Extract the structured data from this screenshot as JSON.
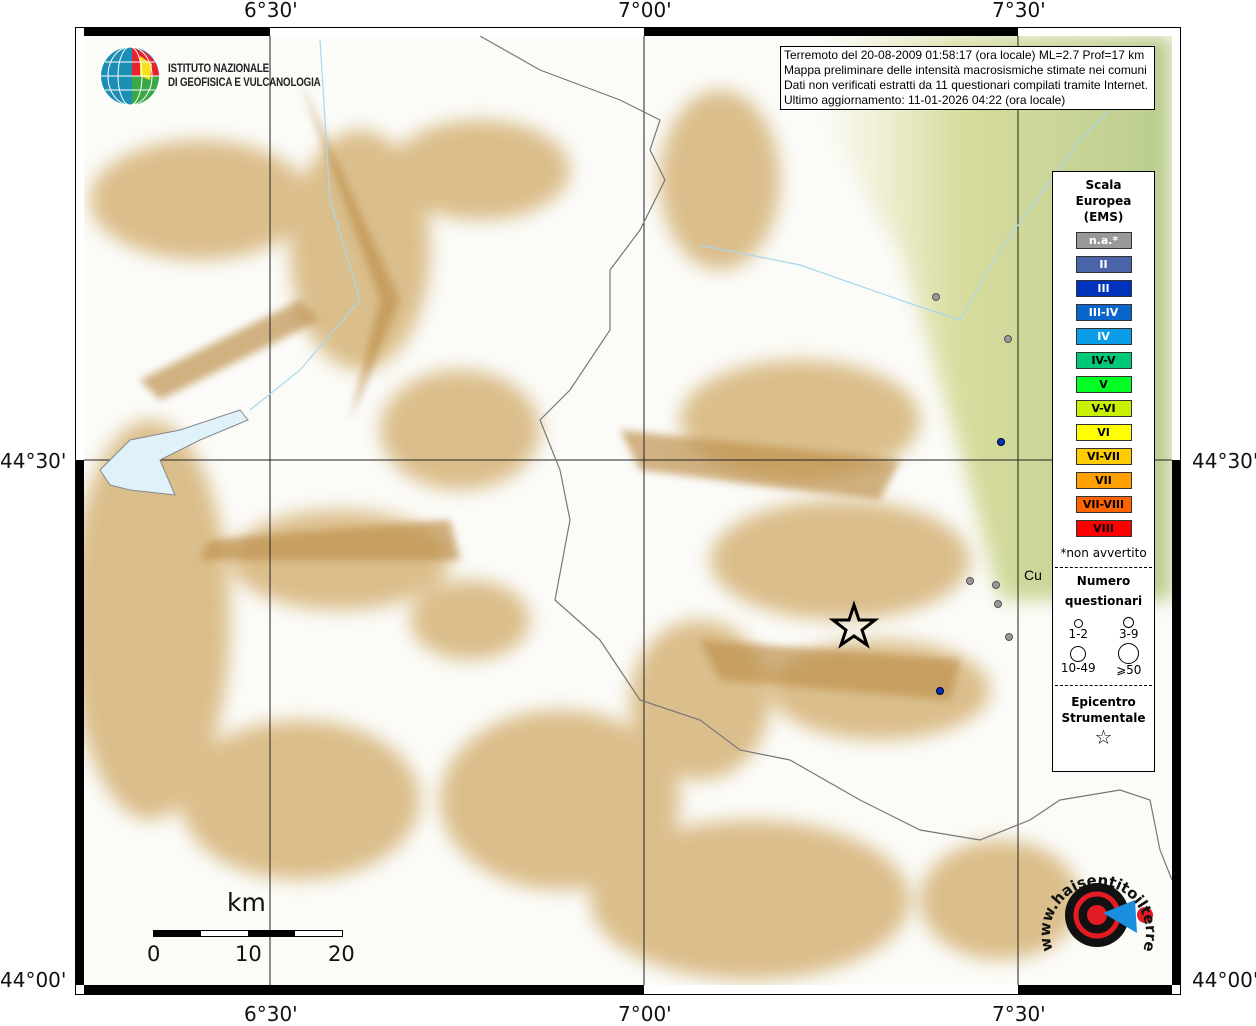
{
  "map": {
    "lon_labels": [
      "6°30'",
      "7°00'",
      "7°30'"
    ],
    "lat_labels": [
      "44°30'",
      "44°00'"
    ],
    "town_label": "Cu",
    "colors": {
      "relief_low": "#ece3b0",
      "relief_mid": "#c8a060",
      "plain": "#c8d39a",
      "border": "#777777",
      "water": "#dff2fa",
      "intensity_na": "#999999",
      "intensity_iii": "#0033bb"
    },
    "epicenter": {
      "icon": "star-icon"
    },
    "points": [
      {
        "intensity": "n.a.*"
      },
      {
        "intensity": "n.a.*"
      },
      {
        "intensity": "n.a.*"
      },
      {
        "intensity": "n.a.*"
      },
      {
        "intensity": "n.a.*"
      },
      {
        "intensity": "n.a.*"
      },
      {
        "intensity": "III"
      },
      {
        "intensity": "III"
      }
    ]
  },
  "info": {
    "line1": "Terremoto del 20-08-2009 01:58:17 (ora locale) ML=2.7 Prof=17 km",
    "line2": "Mappa preliminare delle intensità macrosismiche stimate nei comuni",
    "line3": "Dati non verificati estratti da 11 questionari compilati tramite Internet.",
    "line4": "Ultimo aggiornamento: 11-01-2026 04:22 (ora locale)"
  },
  "logo": {
    "ingv_line1": "ISTITUTO NAZIONALE",
    "ingv_line2": "DI GEOFISICA E VULCANOLOGIA",
    "hsit_text": "www.haisentitoilterremoto.it"
  },
  "legend": {
    "title": [
      "Scala",
      "Europea",
      "(EMS)"
    ],
    "scale": [
      {
        "label": "n.a.*",
        "color": "#999999",
        "text": "#ffffff"
      },
      {
        "label": "II",
        "color": "#4a64aa",
        "text": "#ffffff"
      },
      {
        "label": "III",
        "color": "#0033bb",
        "text": "#ffffff"
      },
      {
        "label": "III-IV",
        "color": "#0a66cc",
        "text": "#ffffff"
      },
      {
        "label": "IV",
        "color": "#0a9ce6",
        "text": "#ffffff"
      },
      {
        "label": "IV-V",
        "color": "#00c878",
        "text": "#000000"
      },
      {
        "label": "V",
        "color": "#00ff22",
        "text": "#000000"
      },
      {
        "label": "V-VI",
        "color": "#c8f000",
        "text": "#000000"
      },
      {
        "label": "VI",
        "color": "#ffff00",
        "text": "#000000"
      },
      {
        "label": "VI-VII",
        "color": "#ffcc00",
        "text": "#000000"
      },
      {
        "label": "VII",
        "color": "#ffa000",
        "text": "#000000"
      },
      {
        "label": "VII-VIII",
        "color": "#ff6400",
        "text": "#000000"
      },
      {
        "label": "VIII",
        "color": "#ff0000",
        "text": "#000000"
      }
    ],
    "note": "*non avvertito",
    "questionnaires_title": [
      "Numero",
      "questionari"
    ],
    "questionnaires": [
      "1-2",
      "3-9",
      "10-49",
      "⩾50"
    ],
    "epicenter_title": [
      "Epicentro",
      "Strumentale"
    ]
  },
  "scalebar": {
    "unit": "km",
    "ticks": [
      "0",
      "10",
      "20"
    ]
  }
}
